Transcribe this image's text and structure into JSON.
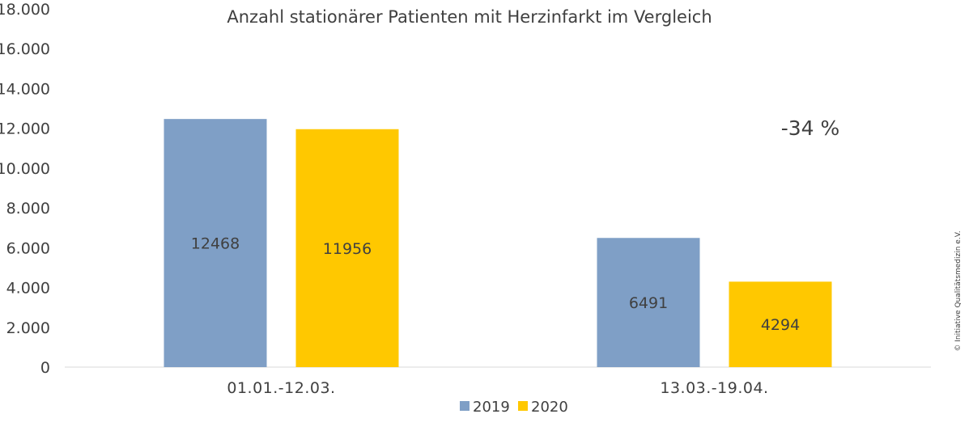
{
  "chart_data": {
    "type": "bar",
    "title": "Anzahl stationärer Patienten mit Herzinfarkt im Vergleich",
    "categories": [
      "01.01.-12.03.",
      "13.03.-19.04."
    ],
    "series": [
      {
        "name": "2019",
        "color": "#7f9fc6",
        "values": [
          12468,
          6491
        ]
      },
      {
        "name": "2020",
        "color": "#ffc800",
        "values": [
          11956,
          4294
        ]
      }
    ],
    "data_labels": [
      [
        "12468",
        "11956"
      ],
      [
        "6491",
        "4294"
      ]
    ],
    "ylim": [
      0,
      18000
    ],
    "yticks": [
      "0",
      "2.000",
      "4.000",
      "6.000",
      "8.000",
      "10.000",
      "12.000",
      "14.000",
      "16.000",
      "18.000"
    ],
    "grid": false,
    "legend_position": "bottom",
    "annotation": "-34 %",
    "xlabel": "",
    "ylabel": ""
  },
  "copyright": "© Initiative Qualitätsmedizin e.V."
}
